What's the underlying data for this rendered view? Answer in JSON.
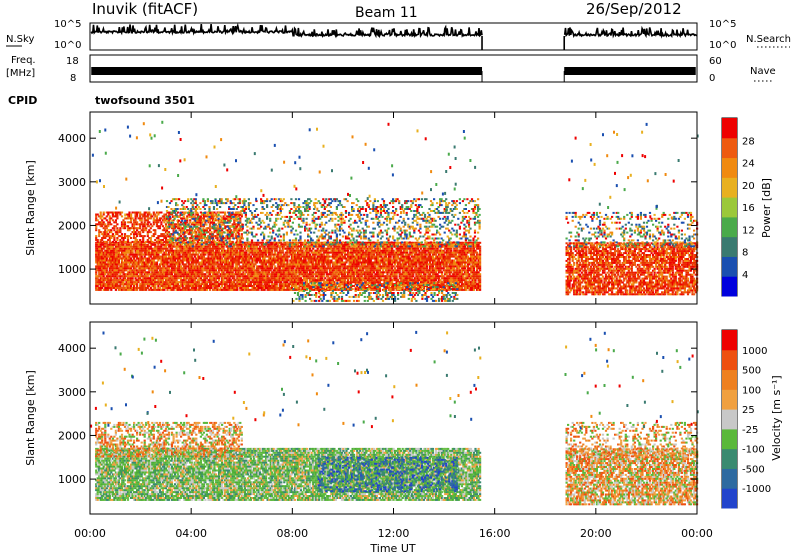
{
  "header": {
    "station": "Inuvik (fitACF)",
    "beam": "Beam 11",
    "date": "26/Sep/2012"
  },
  "status_panels": {
    "nsky_label": "N.Sky",
    "nsearch_label": "N.Search",
    "noise_ticks": [
      "10^5",
      "10^0"
    ],
    "freq_label_1": "Freq.",
    "freq_label_2": "[MHz]",
    "freq_ticks": [
      "18",
      "8"
    ],
    "nave_label": "Nave",
    "nave_ticks": [
      "60",
      "0"
    ],
    "cpid_label": "CPID",
    "cpid_value": "twofsound 3501",
    "data_gap_ut": [
      15.5,
      18.75
    ]
  },
  "chart_data": [
    {
      "type": "heatmap",
      "parameter": "power",
      "ylabel": "Slant Range [km]",
      "xlabel": "Time UT",
      "x_ticks": [
        "00:00",
        "04:00",
        "08:00",
        "12:00",
        "16:00",
        "20:00",
        "00:00"
      ],
      "y_ticks": [
        "1000",
        "2000",
        "3000",
        "4000"
      ],
      "ylim": [
        200,
        4600
      ],
      "colorbar": {
        "label": "Power [dB]",
        "ticks": [
          "28",
          "24",
          "20",
          "16",
          "12",
          "8",
          "4"
        ],
        "colors": [
          "#0000dd",
          "#1a4fb0",
          "#3a7a70",
          "#4aaa4a",
          "#9bc83a",
          "#e8b020",
          "#f08a10",
          "#ee5a10",
          "#ee0000"
        ]
      },
      "regions": [
        {
          "t0": 0.2,
          "t1": 15.4,
          "r0": 500,
          "r1": 1600,
          "value": "red",
          "density": 0.9
        },
        {
          "t0": 0.2,
          "t1": 6.0,
          "r0": 1600,
          "r1": 2300,
          "value": "red",
          "density": 0.55
        },
        {
          "t0": 3.0,
          "t1": 15.4,
          "r0": 1500,
          "r1": 2600,
          "value": "mixed",
          "density": 0.3
        },
        {
          "t0": 8.0,
          "t1": 14.5,
          "r0": 250,
          "r1": 700,
          "value": "mixed",
          "density": 0.35
        },
        {
          "t0": 18.8,
          "t1": 24.0,
          "r0": 400,
          "r1": 1600,
          "value": "red",
          "density": 0.75
        },
        {
          "t0": 18.8,
          "t1": 24.0,
          "r0": 1500,
          "r1": 2300,
          "value": "mixed",
          "density": 0.25
        }
      ]
    },
    {
      "type": "heatmap",
      "parameter": "velocity",
      "ylabel": "Slant Range [km]",
      "xlabel": "Time UT",
      "x_ticks": [
        "00:00",
        "04:00",
        "08:00",
        "12:00",
        "16:00",
        "20:00",
        "00:00"
      ],
      "y_ticks": [
        "1000",
        "2000",
        "3000",
        "4000"
      ],
      "ylim": [
        200,
        4600
      ],
      "colorbar": {
        "label": "Velocity [m s⁻¹]",
        "ticks": [
          "1000",
          "500",
          "100",
          "25",
          "-25",
          "-100",
          "-500",
          "-1000"
        ],
        "colors": [
          "#2244cc",
          "#2e6aa0",
          "#3a8a70",
          "#5ab83a",
          "#c8c8c8",
          "#f0a040",
          "#ee8020",
          "#ee5010",
          "#ee0000"
        ]
      },
      "regions": [
        {
          "t0": 0.2,
          "t1": 15.4,
          "r0": 500,
          "r1": 1700,
          "value": "green",
          "density": 0.85
        },
        {
          "t0": 0.2,
          "t1": 6.0,
          "r0": 1500,
          "r1": 2300,
          "value": "orange",
          "density": 0.5
        },
        {
          "t0": 9.0,
          "t1": 14.5,
          "r0": 700,
          "r1": 1500,
          "value": "blue",
          "density": 0.45
        },
        {
          "t0": 18.8,
          "t1": 24.0,
          "r0": 400,
          "r1": 1700,
          "value": "orange",
          "density": 0.75
        },
        {
          "t0": 18.8,
          "t1": 24.0,
          "r0": 1500,
          "r1": 2300,
          "value": "orange",
          "density": 0.3
        }
      ]
    }
  ]
}
